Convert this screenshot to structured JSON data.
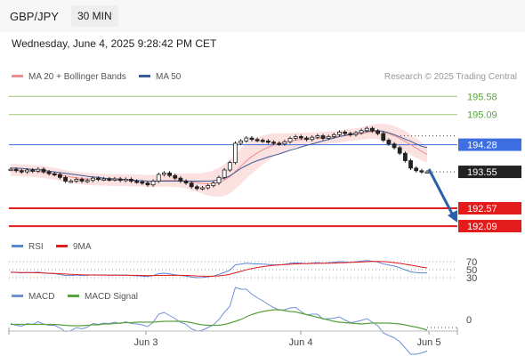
{
  "header": {
    "pair": "GBP/JPY",
    "timeframe": "30 MIN"
  },
  "datetime": "Wednesday, June 4, 2025 9:28:42 PM CET",
  "legend": {
    "ma20_label": "MA 20 + Bollinger Bands",
    "ma50_label": "MA 50",
    "rsi_label": "RSI",
    "rsi_ma_label": "9MA",
    "macd_label": "MACD",
    "macd_signal_label": "MACD Signal"
  },
  "credit": "Research © 2025 Trading Central",
  "colors": {
    "candle": "#222222",
    "bollinger": "#f9c9c9",
    "ma20": "#ef8d8d",
    "ma50": "#3b5a9a",
    "resistance": "#9cc97d",
    "pivot": "#3d6fe0",
    "support": "#e31b1b",
    "arrow": "#2a5faa",
    "rsi": "#5b86d8",
    "rsi_ma": "#e31b1b",
    "macd": "#6f90d8",
    "macd_signal": "#5aa33c"
  },
  "chart_data": {
    "type": "candlestick",
    "x_labels": [
      "Jun 3",
      "Jun 4",
      "Jun 5"
    ],
    "y_range": [
      191.9,
      195.85
    ],
    "price_levels": [
      {
        "name": "resistance_2",
        "value": 195.58,
        "label": "195.58"
      },
      {
        "name": "resistance_1",
        "value": 195.09,
        "label": "195.09"
      },
      {
        "name": "pivot",
        "value": 194.28,
        "label": "194.28"
      },
      {
        "name": "last_price",
        "value": 193.55,
        "label": "193.55"
      },
      {
        "name": "support_1",
        "value": 192.57,
        "label": "192.57"
      },
      {
        "name": "support_2",
        "value": 192.09,
        "label": "192.09"
      }
    ],
    "close_prices": [
      193.62,
      193.58,
      193.55,
      193.6,
      193.57,
      193.62,
      193.55,
      193.5,
      193.48,
      193.4,
      193.3,
      193.3,
      193.35,
      193.3,
      193.32,
      193.38,
      193.35,
      193.36,
      193.34,
      193.36,
      193.32,
      193.35,
      193.3,
      193.28,
      193.25,
      193.2,
      193.3,
      193.48,
      193.52,
      193.45,
      193.38,
      193.3,
      193.25,
      193.15,
      193.1,
      193.12,
      193.18,
      193.25,
      193.4,
      193.6,
      193.8,
      194.32,
      194.38,
      194.46,
      194.42,
      194.4,
      194.38,
      194.35,
      194.32,
      194.3,
      194.36,
      194.45,
      194.5,
      194.46,
      194.42,
      194.48,
      194.52,
      194.45,
      194.5,
      194.55,
      194.62,
      194.58,
      194.55,
      194.6,
      194.66,
      194.72,
      194.65,
      194.58,
      194.4,
      194.3,
      194.2,
      194.05,
      193.85,
      193.65,
      193.58,
      193.55,
      193.55
    ],
    "ma50": [
      193.65,
      193.65,
      193.64,
      193.63,
      193.62,
      193.61,
      193.59,
      193.57,
      193.55,
      193.53,
      193.51,
      193.49,
      193.47,
      193.45,
      193.43,
      193.41,
      193.4,
      193.38,
      193.37,
      193.36,
      193.35,
      193.34,
      193.33,
      193.32,
      193.31,
      193.3,
      193.3,
      193.3,
      193.3,
      193.3,
      193.3,
      193.3,
      193.3,
      193.3,
      193.3,
      193.3,
      193.3,
      193.31,
      193.34,
      193.38,
      193.44,
      193.54,
      193.64,
      193.72,
      193.79,
      193.85,
      193.9,
      193.95,
      193.99,
      194.03,
      194.08,
      194.13,
      194.17,
      194.22,
      194.26,
      194.3,
      194.34,
      194.38,
      194.42,
      194.46,
      194.5,
      194.53,
      194.56,
      194.59,
      194.62,
      194.64,
      194.65,
      194.66,
      194.64,
      194.6,
      194.55,
      194.49,
      194.43,
      194.37,
      194.3,
      194.24,
      194.2
    ],
    "ma20": [
      193.6,
      193.6,
      193.59,
      193.58,
      193.57,
      193.56,
      193.54,
      193.52,
      193.5,
      193.47,
      193.44,
      193.41,
      193.39,
      193.37,
      193.36,
      193.35,
      193.34,
      193.34,
      193.33,
      193.33,
      193.33,
      193.33,
      193.32,
      193.32,
      193.31,
      193.3,
      193.3,
      193.31,
      193.32,
      193.32,
      193.32,
      193.32,
      193.31,
      193.29,
      193.26,
      193.24,
      193.23,
      193.24,
      193.27,
      193.33,
      193.42,
      193.56,
      193.7,
      193.84,
      193.96,
      194.06,
      194.14,
      194.21,
      194.27,
      194.31,
      194.34,
      194.37,
      194.4,
      194.42,
      194.43,
      194.44,
      194.45,
      194.46,
      194.47,
      194.48,
      194.5,
      194.52,
      194.54,
      194.56,
      194.58,
      194.61,
      194.63,
      194.64,
      194.62,
      194.58,
      194.52,
      194.45,
      194.37,
      194.28,
      194.19,
      194.1,
      194.02
    ],
    "rsi": {
      "levels": [
        70,
        50,
        30
      ]
    },
    "macd": {
      "levels": [
        0
      ]
    }
  }
}
